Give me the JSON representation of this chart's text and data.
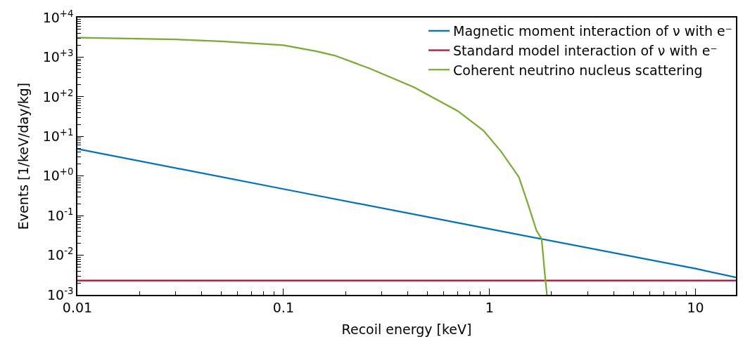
{
  "chart_data": {
    "type": "line",
    "xlabel": "Recoil energy [keV]",
    "ylabel": "Events [1/keV/day/kg]",
    "log": "xy",
    "legend": "top right",
    "marker": "none",
    "line_style": "solid",
    "xlim": [
      0.01,
      15.7
    ],
    "xticks": [
      0.01,
      0.1,
      1,
      10
    ],
    "ylim": [
      0.001,
      10000
    ],
    "yticks": [
      {
        "value": 0.001,
        "label": "10$^{-3}$"
      },
      {
        "value": 0.01,
        "label": "10$^{-2}$"
      },
      {
        "value": 0.1,
        "label": "10$^{-1}$"
      },
      {
        "value": 1,
        "label": "10$^{+0}$"
      },
      {
        "value": 10,
        "label": "10$^{+1}$"
      },
      {
        "value": 100,
        "label": "10$^{+2}$"
      },
      {
        "value": 1000,
        "label": "10$^{+3}$"
      },
      {
        "value": 10000,
        "label": "10$^{+4}$"
      }
    ],
    "series": [
      {
        "name": "Magnetic moment interaction of ν with e⁻",
        "color": "#0072bd",
        "x": [
          0.01,
          0.1,
          1,
          10,
          15.7
        ],
        "values": [
          4.85,
          0.47,
          0.046,
          0.0046,
          0.00275
        ]
      },
      {
        "name": "Standard model interaction of ν with e⁻",
        "color": "#a2142f",
        "x": [
          0.01,
          0.1,
          1,
          10,
          15.7
        ],
        "values": [
          0.0023,
          0.0023,
          0.0023,
          0.0023,
          0.0023
        ]
      },
      {
        "name": "Coherent neutrino nucleus scattering",
        "color": "#77ac30",
        "x": [
          0.01,
          0.03,
          0.05,
          0.1,
          0.145,
          0.177,
          0.262,
          0.43,
          0.7,
          0.935,
          1.14,
          1.39,
          1.53,
          1.69,
          1.79,
          1.85,
          1.9
        ],
        "values": [
          3100,
          2800,
          2500,
          2000,
          1400,
          1100,
          520,
          174,
          44,
          14,
          4.1,
          0.93,
          0.21,
          0.042,
          0.026,
          0.004,
          0.001
        ]
      }
    ]
  }
}
